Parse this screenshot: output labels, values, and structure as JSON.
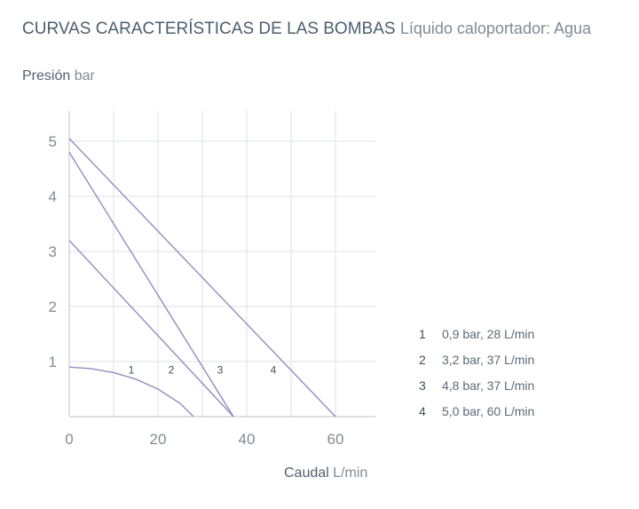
{
  "chart_data": {
    "type": "line",
    "title": "CURVAS CARACTERÍSTICAS DE LAS BOMBAS",
    "subtitle": "Líquido caloportador: Agua",
    "ylabel": "Presión",
    "yunit": "bar",
    "xlabel": "Caudal",
    "xunit": "L/min",
    "xlim": [
      0,
      69
    ],
    "ylim": [
      0,
      5.55
    ],
    "xticks": [
      0,
      20,
      40,
      60
    ],
    "yticks": [
      1,
      2,
      3,
      4,
      5
    ],
    "grid": true,
    "line_color": "#8e8fbf",
    "series": [
      {
        "name": "1",
        "x": [
          0,
          5,
          10,
          15,
          20,
          25,
          28
        ],
        "y": [
          0.9,
          0.87,
          0.8,
          0.68,
          0.5,
          0.24,
          0
        ],
        "label_at": [
          14,
          0.85
        ]
      },
      {
        "name": "2",
        "x": [
          0,
          37
        ],
        "y": [
          3.2,
          0
        ],
        "label_at": [
          23,
          0.85
        ]
      },
      {
        "name": "3",
        "x": [
          0,
          37
        ],
        "y": [
          4.8,
          0
        ],
        "label_at": [
          34,
          0.85
        ]
      },
      {
        "name": "4",
        "x": [
          0,
          60
        ],
        "y": [
          5.05,
          0
        ],
        "label_at": [
          46,
          0.85
        ]
      }
    ],
    "legend": [
      {
        "num": "1",
        "text": "0,9 bar, 28 L/min"
      },
      {
        "num": "2",
        "text": "3,2 bar, 37 L/min"
      },
      {
        "num": "3",
        "text": "4,8 bar, 37 L/min"
      },
      {
        "num": "4",
        "text": "5,0 bar, 60 L/min"
      }
    ],
    "legend_placement": "right"
  }
}
